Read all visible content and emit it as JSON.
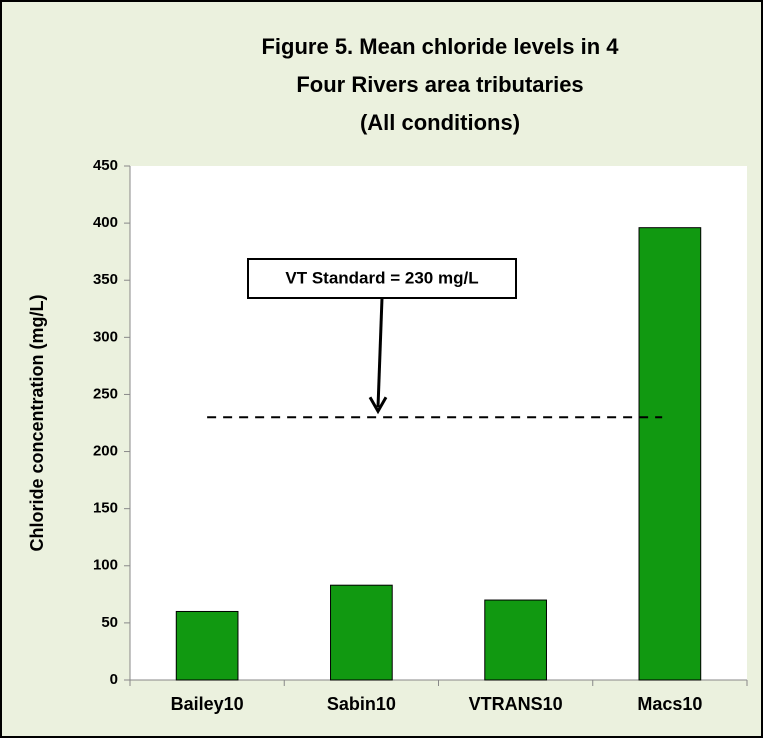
{
  "chart_data": {
    "type": "bar",
    "title": [
      "Figure 5. Mean chloride levels in 4",
      "Four Rivers area tributaries",
      "(All conditions)"
    ],
    "y_label": "Chloride concentration (mg/L)",
    "categories": [
      "Bailey10",
      "Sabin10",
      "VTRANS10",
      "Macs10"
    ],
    "values": [
      60,
      83,
      70,
      396
    ],
    "color": "#119911",
    "ylim": [
      0,
      450
    ],
    "yticks": [
      0,
      50,
      100,
      150,
      200,
      250,
      300,
      350,
      400,
      450
    ],
    "grid": false,
    "reference_line": {
      "value": 230,
      "label": "VT Standard = 230 mg/L"
    }
  }
}
